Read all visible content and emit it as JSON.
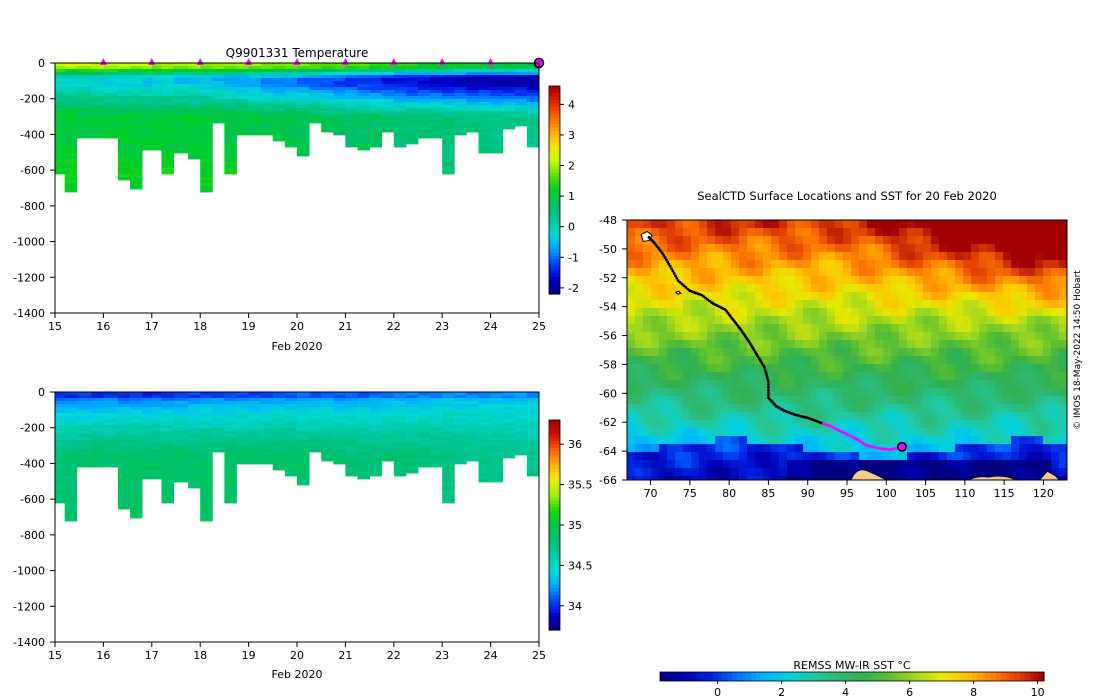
{
  "colors": {
    "temperature_scale": [
      "#00007f",
      "#0000c8",
      "#0040ff",
      "#00a0ff",
      "#00d8d0",
      "#00c89a",
      "#00c060",
      "#00d020",
      "#60e000",
      "#c8ff00",
      "#ffe000",
      "#ffa000",
      "#ff6000",
      "#e02000",
      "#a00000"
    ],
    "salinity_scale": [
      "#000080",
      "#0000c8",
      "#0050ff",
      "#00a8ff",
      "#00d8d8",
      "#00c8a0",
      "#00c070",
      "#00c840",
      "#20d800",
      "#a0f000",
      "#f0f000",
      "#ffb000",
      "#ff6000",
      "#d01000",
      "#a00000"
    ],
    "sst_scale": [
      "#000080",
      "#0000b0",
      "#0020e0",
      "#0070ff",
      "#00b0ff",
      "#00d0e0",
      "#20c8a0",
      "#30b870",
      "#30b050",
      "#60c030",
      "#a0d820",
      "#e8e800",
      "#ffc000",
      "#ff8000",
      "#e04000",
      "#a00000"
    ],
    "profile_marker": "#ff00ff",
    "land": "#f5c896",
    "track": "#000000"
  },
  "chart_data": [
    {
      "id": "temperature-section",
      "type": "heatmap",
      "title": "Q9901331  Temperature",
      "xlabel": "Feb 2020",
      "ylabel": "",
      "xlim": [
        15,
        25
      ],
      "ylim": [
        -1400,
        0
      ],
      "xticks": [
        "15",
        "16",
        "17",
        "18",
        "19",
        "20",
        "21",
        "22",
        "23",
        "24",
        "25"
      ],
      "yticks": [
        "0",
        "-200",
        "-400",
        "-600",
        "-800",
        "-1000",
        "-1200",
        "-1400"
      ],
      "colorbar": {
        "range": [
          -2.2,
          4.6
        ],
        "ticks": [
          "4",
          "3",
          "2",
          "1",
          "0",
          "-1",
          "-2"
        ]
      },
      "profile_markers_day": [
        16,
        17,
        18,
        19,
        20,
        21,
        22,
        23,
        24
      ],
      "current_position_day": 25,
      "profile_days": [
        15.0,
        15.2,
        15.45,
        15.75,
        16.0,
        16.3,
        16.55,
        16.8,
        17.0,
        17.2,
        17.45,
        17.75,
        18.0,
        18.25,
        18.5,
        18.75,
        19.0,
        19.25,
        19.5,
        19.75,
        20.0,
        20.25,
        20.5,
        20.75,
        21.0,
        21.25,
        21.5,
        21.75,
        22.0,
        22.25,
        22.5,
        22.75,
        23.0,
        23.25,
        23.5,
        23.75,
        24.0,
        24.25,
        24.5,
        24.75,
        25.0
      ],
      "profile_max_depth": [
        -620,
        -720,
        -420,
        -420,
        -420,
        -640,
        -700,
        -480,
        -480,
        -610,
        -500,
        -530,
        -710,
        -330,
        -620,
        -390,
        -400,
        -390,
        -430,
        -460,
        -510,
        -330,
        -380,
        -400,
        -460,
        -480,
        -470,
        -370,
        -470,
        -440,
        -420,
        -420,
        -610,
        -400,
        -380,
        -500,
        -500,
        -360,
        -340,
        -460,
        -420
      ],
      "surface_temperature_by_day": [
        2.2,
        2.2,
        2.0,
        2.0,
        1.9,
        1.8,
        1.6,
        1.4,
        1.2,
        1.0,
        1.0
      ],
      "deep_temperature_by_day": [
        1.1,
        1.1,
        1.1,
        1.1,
        1.0,
        0.9,
        0.8,
        0.7,
        0.6,
        0.5,
        0.4
      ],
      "minimum_temperature_by_day": [
        -0.2,
        -0.3,
        -0.4,
        -0.5,
        -0.8,
        -1.0,
        -1.3,
        -1.6,
        -1.8,
        -1.9,
        -2.0
      ]
    },
    {
      "id": "salinity-section",
      "type": "heatmap",
      "title": "",
      "xlabel": "Feb 2020",
      "ylabel": "",
      "xlim": [
        15,
        25
      ],
      "ylim": [
        -1400,
        0
      ],
      "xticks": [
        "15",
        "16",
        "17",
        "18",
        "19",
        "20",
        "21",
        "22",
        "23",
        "24",
        "25"
      ],
      "yticks": [
        "0",
        "-200",
        "-400",
        "-600",
        "-800",
        "-1000",
        "-1200",
        "-1400"
      ],
      "colorbar": {
        "range": [
          33.7,
          36.3
        ],
        "ticks": [
          "36",
          "35.5",
          "35",
          "34.5",
          "34"
        ]
      },
      "surface_salinity_by_day": [
        34.1,
        34.1,
        34.1,
        34.15,
        34.15,
        34.2,
        34.2,
        34.25,
        34.3,
        34.3,
        34.3
      ],
      "deep_salinity_by_day": [
        34.8,
        34.85,
        34.85,
        34.85,
        34.85,
        34.85,
        34.8,
        34.8,
        34.75,
        34.7,
        34.7
      ]
    },
    {
      "id": "sst-map",
      "type": "heatmap",
      "title": "SealCTD Surface Locations and SST for 20 Feb 2020",
      "xlabel": "",
      "ylabel": "",
      "xlim": [
        67,
        123
      ],
      "ylim": [
        -66,
        -48
      ],
      "xticks": [
        "70",
        "75",
        "80",
        "85",
        "90",
        "95",
        "100",
        "105",
        "110",
        "115",
        "120"
      ],
      "yticks": [
        "-48",
        "-50",
        "-52",
        "-54",
        "-56",
        "-58",
        "-60",
        "-62",
        "-64",
        "-66"
      ],
      "colorbar": {
        "label": "REMSS MW-IR SST °C",
        "range": [
          -1.8,
          10.2
        ],
        "ticks": [
          "0",
          "2",
          "4",
          "6",
          "8",
          "10"
        ]
      },
      "credit": "© IMOS 18-May-2022 14:50 Hobart",
      "track_lon": [
        69.8,
        70.5,
        71.5,
        72.5,
        73.5,
        75,
        76.5,
        78,
        79.5,
        80.5,
        81.5,
        82.5,
        83.5,
        84.5,
        85,
        85,
        86,
        87,
        88.5,
        90,
        91.5,
        93,
        94.5,
        96,
        97.5,
        99,
        100.5,
        102
      ],
      "track_lat": [
        -49.2,
        -49.6,
        -50.3,
        -51.2,
        -52.2,
        -52.9,
        -53.2,
        -53.8,
        -54.2,
        -54.9,
        -55.6,
        -56.4,
        -57.3,
        -58.2,
        -59.2,
        -60.3,
        -60.9,
        -61.2,
        -61.5,
        -61.7,
        -62.0,
        -62.3,
        -62.7,
        -63.1,
        -63.6,
        -63.8,
        -63.9,
        -63.7
      ],
      "track_highlight_from_lon": 92,
      "current_position": {
        "lon": 102,
        "lat": -63.7
      }
    }
  ]
}
